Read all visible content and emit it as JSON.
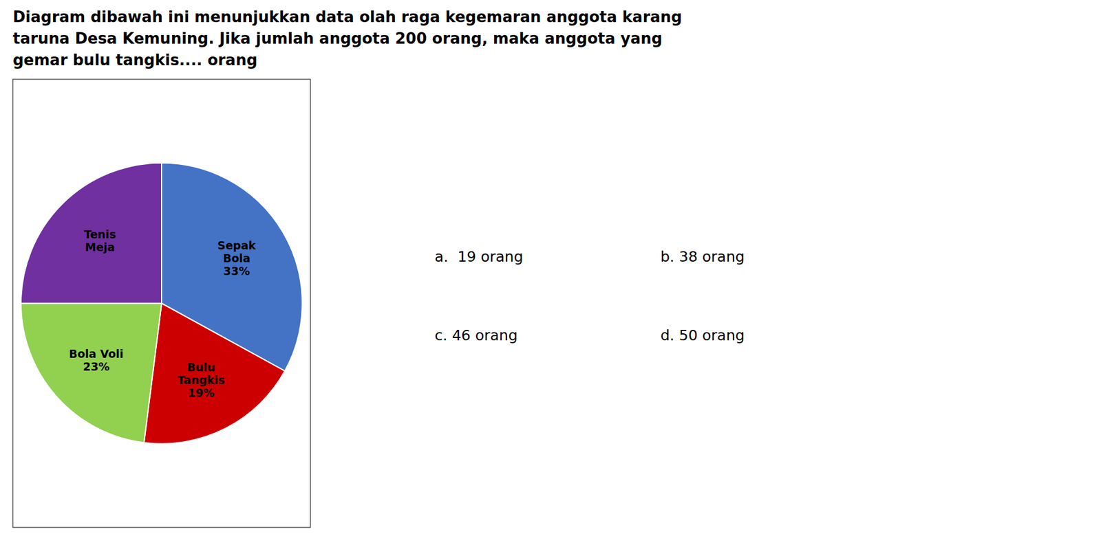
{
  "chart_data": {
    "type": "pie",
    "title": "Diagram dibawah ini menunjukkan data olah raga kegemaran anggota karang\ntaruna Desa Kemuning. Jika jumlah anggota 200 orang, maka anggota yang\ngemar bulu tangkis.... orang",
    "categories": [
      "Sepak\nBola\n33%",
      "Bulu\nTangkis\n19%",
      "Bola Voli\n23%",
      "Tenis\nMeja"
    ],
    "values": [
      33,
      19,
      23,
      25
    ],
    "colors": [
      "#4472C4",
      "#CC0000",
      "#92D050",
      "#7030A0"
    ],
    "annotations": [
      "a.  19 orang",
      "b. 38 orang",
      "c. 46 orang",
      "d. 50 orang"
    ]
  }
}
